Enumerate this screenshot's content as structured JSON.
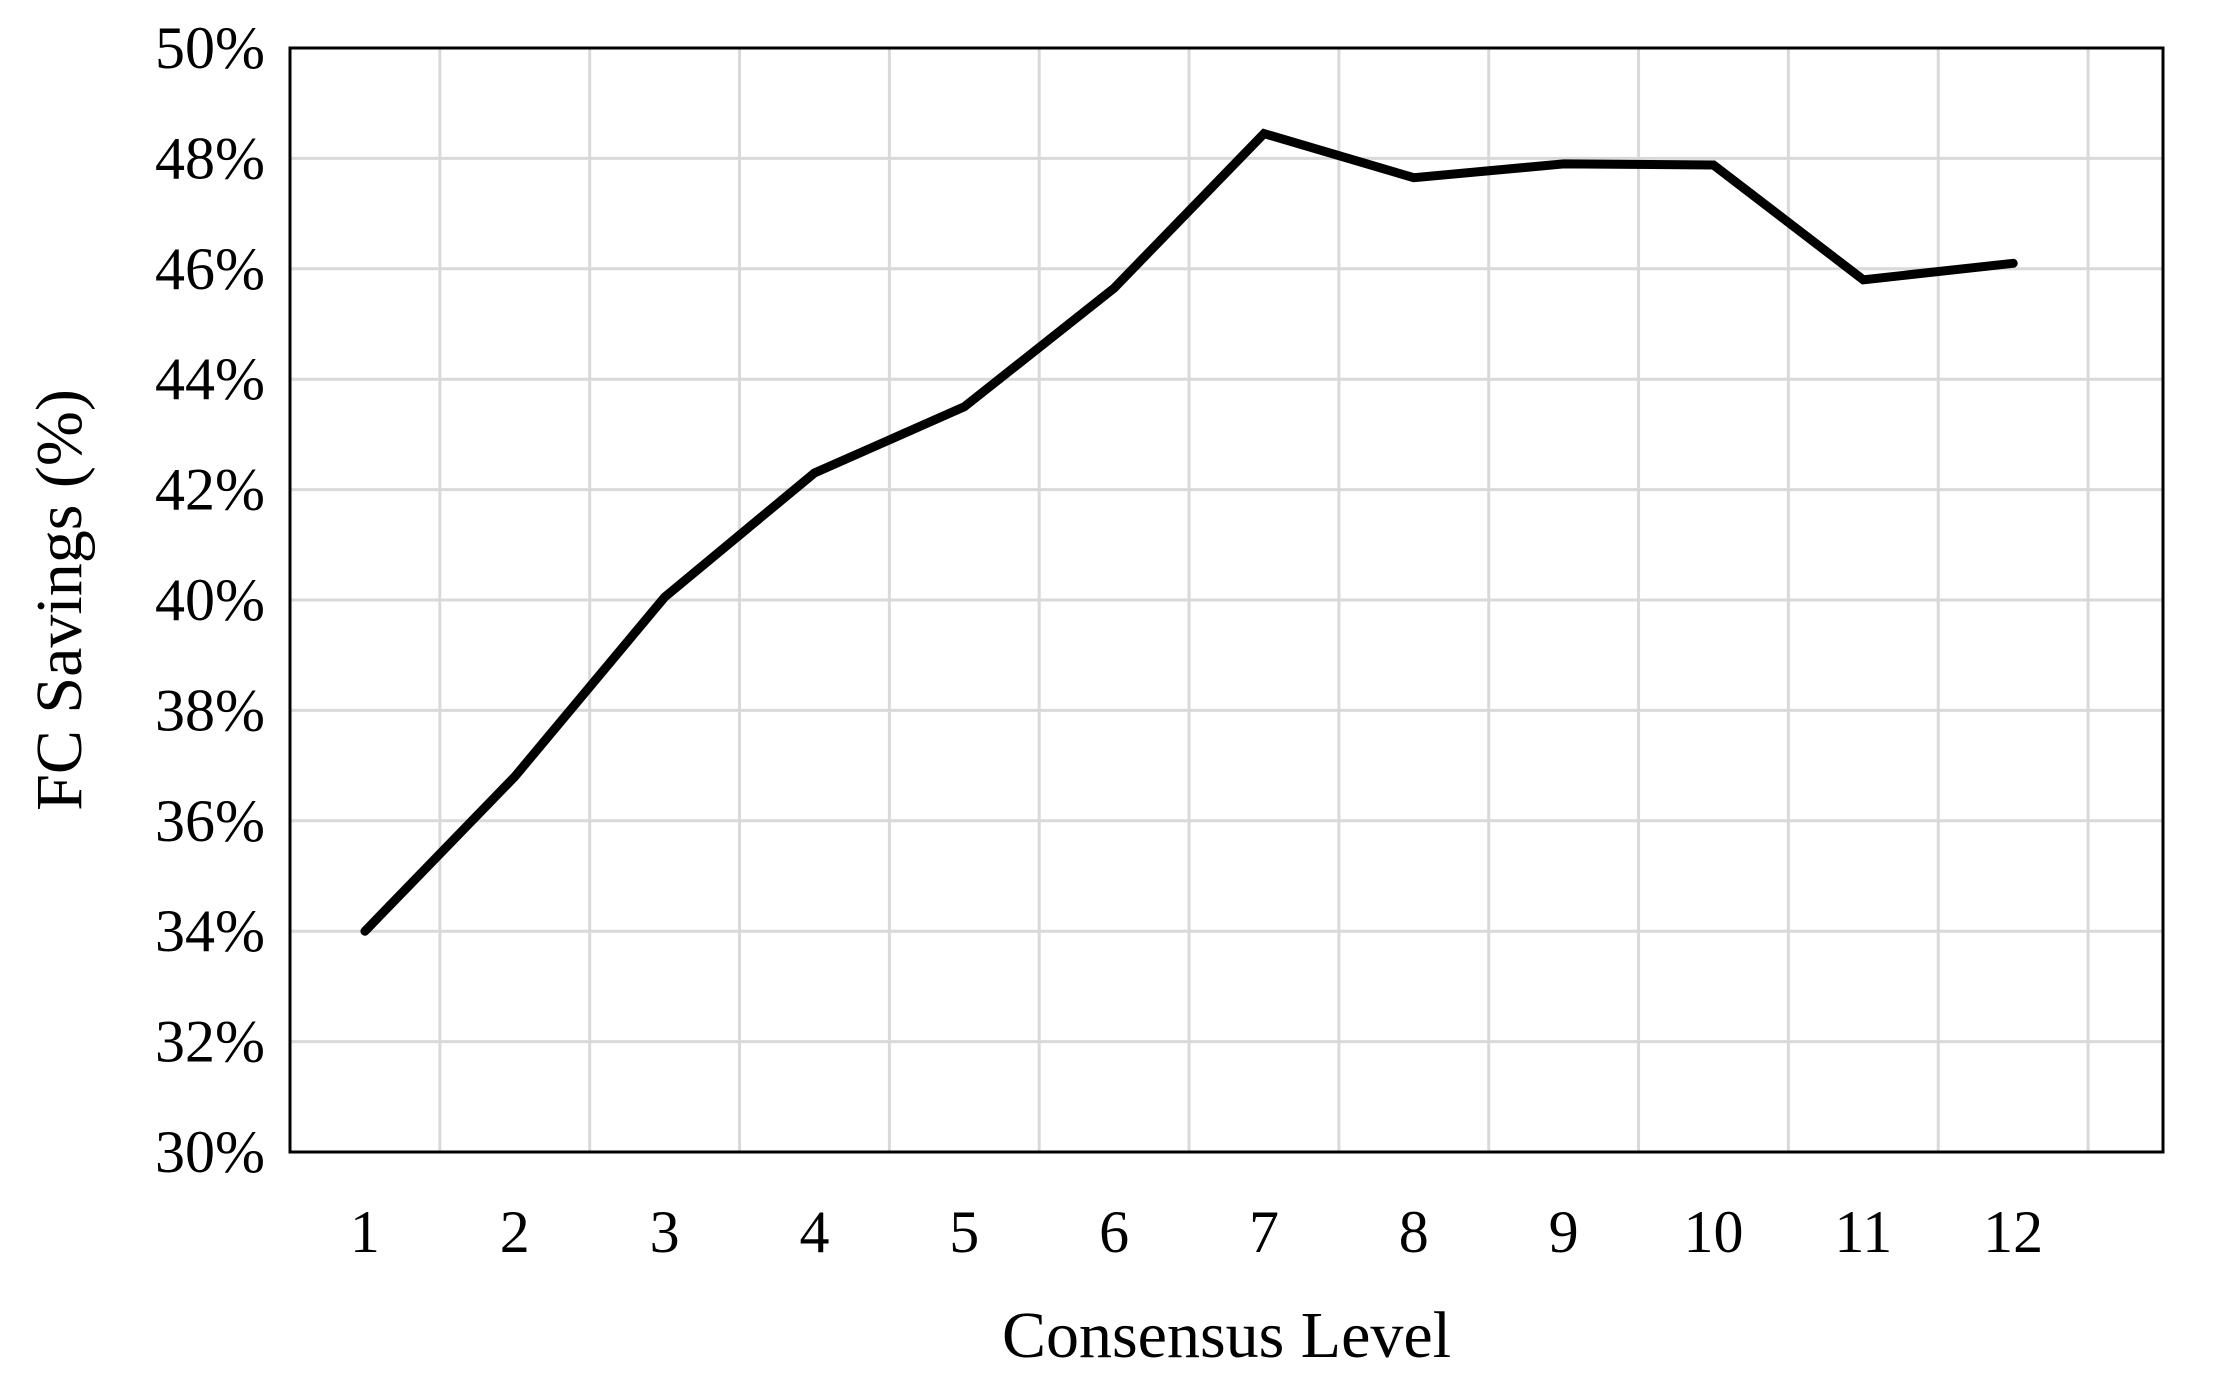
{
  "chart_data": {
    "type": "line",
    "title": "",
    "xlabel": "Consensus Level",
    "ylabel": "FC Savings (%)",
    "categories": [
      "1",
      "2",
      "3",
      "4",
      "5",
      "6",
      "7",
      "8",
      "9",
      "10",
      "11",
      "12"
    ],
    "series": [
      {
        "values": [
          34.0,
          36.8,
          40.05,
          42.3,
          43.5,
          45.65,
          48.45,
          47.65,
          47.9,
          47.88,
          45.8,
          46.1
        ]
      }
    ],
    "ylim": [
      30,
      50
    ],
    "yticks": [
      30,
      32,
      34,
      36,
      38,
      40,
      42,
      44,
      46,
      48,
      50
    ],
    "ytick_labels": [
      "30%",
      "32%",
      "34%",
      "36%",
      "38%",
      "40%",
      "42%",
      "44%",
      "46%",
      "48%",
      "50%"
    ],
    "grid": true,
    "legend": "none",
    "colors": {
      "line": "#000000",
      "grid": "#d9d9d9",
      "frame": "#000000",
      "background": "#ffffff"
    }
  }
}
